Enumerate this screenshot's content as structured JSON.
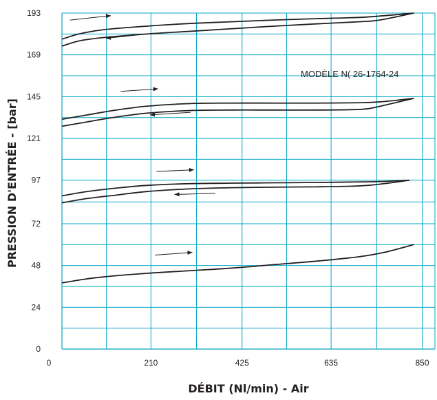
{
  "chart_data": {
    "type": "line",
    "title": "",
    "xlabel": "DÉBIT (Nl/min) - Air",
    "ylabel": "PRESSION D'ENTRÉE - [bar]",
    "annotation": "MODÈLE N( 26-1764-24",
    "xlim": [
      0,
      880
    ],
    "ylim": [
      0,
      193
    ],
    "x_ticks": [
      0,
      210,
      425,
      635,
      850
    ],
    "x_tick_labels": [
      "0",
      "210",
      "425",
      "635",
      "850"
    ],
    "y_ticks": [
      0,
      24,
      48,
      72,
      97,
      121,
      145,
      169,
      193
    ],
    "y_tick_labels": [
      "0",
      "24",
      "48",
      "72",
      "97",
      "121",
      "145",
      "169",
      "193"
    ],
    "grid": true,
    "colors": {
      "grid": "#00a5c4",
      "line": "#231f20",
      "text": "#231f20"
    },
    "series": [
      {
        "x": [
          0,
          40,
          100,
          200,
          300,
          400,
          500,
          600,
          700,
          760,
          830
        ],
        "y": [
          178,
          181,
          183.5,
          185.5,
          187,
          188,
          189,
          189.8,
          190.5,
          191.5,
          193
        ]
      },
      {
        "x": [
          0,
          40,
          100,
          200,
          300,
          400,
          500,
          600,
          700,
          750,
          830
        ],
        "y": [
          174,
          177,
          179,
          181,
          182.5,
          184,
          185.5,
          186.8,
          188,
          189,
          193
        ]
      },
      {
        "x": [
          0,
          60,
          120,
          200,
          300,
          400,
          500,
          600,
          700,
          750,
          830
        ],
        "y": [
          132,
          134.5,
          137,
          139.5,
          141,
          141.3,
          141.3,
          141.3,
          141.5,
          142,
          144
        ]
      },
      {
        "x": [
          0,
          60,
          120,
          200,
          300,
          400,
          500,
          600,
          680,
          720,
          760,
          830
        ],
        "y": [
          128,
          130.5,
          133,
          135.5,
          137,
          137.3,
          137.3,
          137.3,
          137.5,
          138,
          140,
          144
        ]
      },
      {
        "x": [
          0,
          60,
          130,
          200,
          300,
          400,
          500,
          600,
          700,
          760,
          820
        ],
        "y": [
          88,
          90.5,
          92.5,
          94,
          95,
          95.3,
          95.5,
          95.7,
          96,
          96.3,
          97
        ]
      },
      {
        "x": [
          0,
          60,
          130,
          200,
          300,
          400,
          500,
          600,
          700,
          760,
          820
        ],
        "y": [
          84,
          86.5,
          88.5,
          90.5,
          92,
          92.7,
          93,
          93.2,
          93.7,
          95,
          97
        ]
      },
      {
        "x": [
          0,
          50,
          100,
          200,
          300,
          400,
          500,
          600,
          700,
          760,
          830
        ],
        "y": [
          38,
          40,
          41.5,
          43.5,
          45,
          46.5,
          48.5,
          50.5,
          53,
          55.5,
          60
        ]
      }
    ],
    "arrows": [
      {
        "direction": "right",
        "from": [
          50,
          189
        ],
        "to": [
          300,
          191.5
        ]
      },
      {
        "direction": "left",
        "from": [
          520,
          181
        ],
        "to": [
          270,
          178.5
        ]
      },
      {
        "direction": "right",
        "from": [
          360,
          148
        ],
        "to": [
          590,
          149.5
        ]
      },
      {
        "direction": "left",
        "from": [
          790,
          136
        ],
        "to": [
          540,
          134.5
        ]
      },
      {
        "direction": "right",
        "from": [
          580,
          102
        ],
        "to": [
          810,
          103
        ]
      },
      {
        "direction": "left",
        "from": [
          940,
          89.5
        ],
        "to": [
          690,
          88.8
        ]
      },
      {
        "direction": "right",
        "from": [
          570,
          54
        ],
        "to": [
          800,
          55.5
        ]
      }
    ]
  }
}
